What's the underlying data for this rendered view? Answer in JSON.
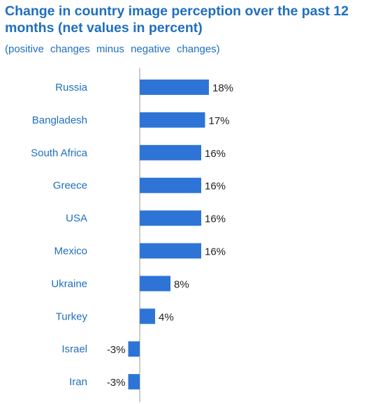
{
  "title": "Change in country image perception over the past 12 months (net values in percent)",
  "subtitle": "(positive changes minus negative changes)",
  "colors": {
    "bar": "#2e74d6",
    "title": "#1f6fbf",
    "category_text": "#1f6fbf",
    "value_text": "#222222",
    "axis": "#999999"
  },
  "chart_data": {
    "type": "bar",
    "orientation": "horizontal",
    "title": "Change in country image perception over the past 12 months (net values in percent)",
    "subtitle": "(positive changes minus negative changes)",
    "categories": [
      "Russia",
      "Bangladesh",
      "South Africa",
      "Greece",
      "USA",
      "Mexico",
      "Ukraine",
      "Turkey",
      "Israel",
      "Iran"
    ],
    "values": [
      18,
      17,
      16,
      16,
      16,
      16,
      8,
      4,
      -3,
      -3
    ],
    "value_labels": [
      "18%",
      "17%",
      "16%",
      "16%",
      "16%",
      "16%",
      "8%",
      "4%",
      "-3%",
      "-3%"
    ],
    "value_unit": "%",
    "grid": false,
    "legend": "none"
  }
}
